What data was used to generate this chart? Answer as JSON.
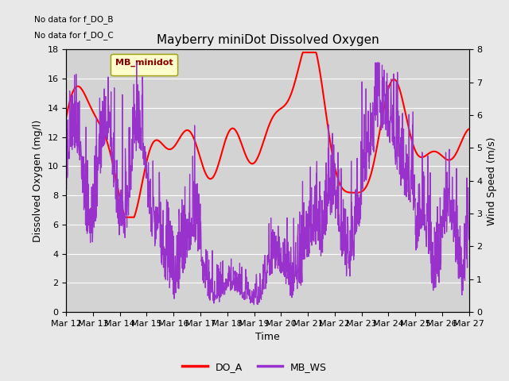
{
  "title": "Mayberry miniDot Dissolved Oxygen",
  "xlabel": "Time",
  "ylabel_left": "Dissolved Oxygen (mg/l)",
  "ylabel_right": "Wind Speed (m/s)",
  "annotation_line1": "No data for f_DO_B",
  "annotation_line2": "No data for f_DO_C",
  "legend_box_label": "MB_minidot",
  "legend_entry_do": "DO_A",
  "legend_entry_ws": "MB_WS",
  "do_color": "#ff0000",
  "ws_color": "#9932cc",
  "ylim_left": [
    0,
    18
  ],
  "ylim_right": [
    0.0,
    8.0
  ],
  "yticks_left": [
    0,
    2,
    4,
    6,
    8,
    10,
    12,
    14,
    16,
    18
  ],
  "yticks_right": [
    0.0,
    1.0,
    2.0,
    3.0,
    4.0,
    5.0,
    6.0,
    7.0,
    8.0
  ],
  "xtick_labels": [
    "Mar 12",
    "Mar 13",
    "Mar 14",
    "Mar 15",
    "Mar 16",
    "Mar 17",
    "Mar 18",
    "Mar 19",
    "Mar 20",
    "Mar 21",
    "Mar 22",
    "Mar 23",
    "Mar 24",
    "Mar 25",
    "Mar 26",
    "Mar 27"
  ],
  "bg_color": "#e8e8e8",
  "plot_bg_color": "#d3d3d3",
  "grid_color": "#ffffff",
  "do_linewidth": 1.5,
  "ws_linewidth": 0.9,
  "figsize": [
    6.4,
    4.8
  ],
  "dpi": 100
}
